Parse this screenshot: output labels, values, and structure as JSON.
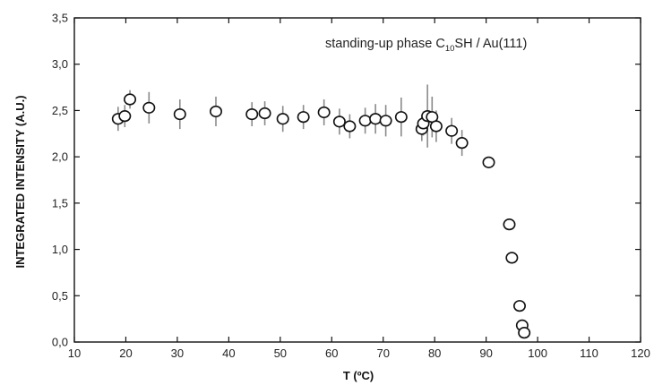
{
  "chart_data": {
    "type": "scatter",
    "xlabel": "T (ºC)",
    "ylabel": "INTEGRATED INTENSITY (A.U.)",
    "xlim": [
      10,
      120
    ],
    "ylim": [
      0.0,
      3.5
    ],
    "x_ticks": [
      "10",
      "20",
      "30",
      "40",
      "50",
      "60",
      "70",
      "80",
      "90",
      "100",
      "110",
      "120"
    ],
    "y_ticks": [
      "0,0",
      "0,5",
      "1,0",
      "1,5",
      "2,0",
      "2,5",
      "3,0",
      "3,5"
    ],
    "annotation": {
      "prefix": "standing-up phase  C",
      "subscript": "10",
      "suffix": "SH / Au(111)"
    },
    "grid": false,
    "legend": "none",
    "marker": "open-circle",
    "points": [
      {
        "x": 18.5,
        "y": 2.41,
        "err": 0.13
      },
      {
        "x": 19.8,
        "y": 2.44,
        "err": 0.12
      },
      {
        "x": 20.8,
        "y": 2.62,
        "err": 0.1
      },
      {
        "x": 24.5,
        "y": 2.53,
        "err": 0.17
      },
      {
        "x": 30.5,
        "y": 2.46,
        "err": 0.16
      },
      {
        "x": 37.5,
        "y": 2.49,
        "err": 0.16
      },
      {
        "x": 44.5,
        "y": 2.46,
        "err": 0.13
      },
      {
        "x": 47.0,
        "y": 2.47,
        "err": 0.13
      },
      {
        "x": 50.5,
        "y": 2.41,
        "err": 0.14
      },
      {
        "x": 54.5,
        "y": 2.43,
        "err": 0.13
      },
      {
        "x": 58.5,
        "y": 2.48,
        "err": 0.14
      },
      {
        "x": 61.5,
        "y": 2.38,
        "err": 0.14
      },
      {
        "x": 63.5,
        "y": 2.33,
        "err": 0.13
      },
      {
        "x": 66.5,
        "y": 2.39,
        "err": 0.14
      },
      {
        "x": 68.5,
        "y": 2.41,
        "err": 0.16
      },
      {
        "x": 70.5,
        "y": 2.39,
        "err": 0.17
      },
      {
        "x": 73.5,
        "y": 2.43,
        "err": 0.21
      },
      {
        "x": 77.5,
        "y": 2.3,
        "err": 0.13
      },
      {
        "x": 77.8,
        "y": 2.36,
        "err": 0.13
      },
      {
        "x": 78.6,
        "y": 2.44,
        "err": 0.34
      },
      {
        "x": 79.5,
        "y": 2.43,
        "err": 0.22
      },
      {
        "x": 80.3,
        "y": 2.33,
        "err": 0.17
      },
      {
        "x": 83.3,
        "y": 2.28,
        "err": 0.14
      },
      {
        "x": 85.3,
        "y": 2.15,
        "err": 0.14
      },
      {
        "x": 90.5,
        "y": 1.94,
        "err": 0.06
      },
      {
        "x": 94.5,
        "y": 1.27,
        "err": 0.05
      },
      {
        "x": 95.0,
        "y": 0.91,
        "err": 0.03
      },
      {
        "x": 96.5,
        "y": 0.39,
        "err": 0.03
      },
      {
        "x": 97.0,
        "y": 0.18,
        "err": 0.03
      },
      {
        "x": 97.4,
        "y": 0.1,
        "err": 0.02
      }
    ]
  }
}
